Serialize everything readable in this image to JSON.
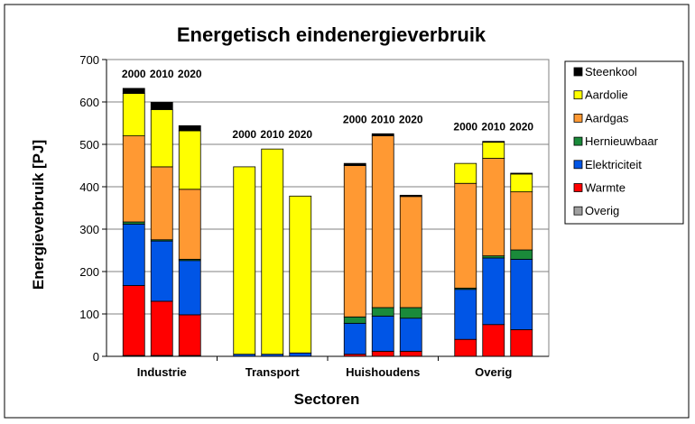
{
  "chart_data": {
    "type": "bar",
    "stacked": true,
    "title": "Energetisch eindenergieverbruik",
    "xlabel": "Sectoren",
    "ylabel": "Energieverbruik [PJ]",
    "ylim": [
      0,
      700
    ],
    "yticks": [
      0,
      100,
      200,
      300,
      400,
      500,
      600,
      700
    ],
    "categories": [
      "Industrie",
      "Transport",
      "Huishoudens",
      "Overig"
    ],
    "years": [
      "2000",
      "2010",
      "2020"
    ],
    "legend_position": "right",
    "series": [
      {
        "name": "Overig",
        "color": "#a0a0a0",
        "values": [
          [
            2,
            2,
            2
          ],
          [
            0,
            0,
            0
          ],
          [
            0,
            0,
            0
          ],
          [
            0,
            0,
            0
          ]
        ]
      },
      {
        "name": "Warmte",
        "color": "#ff0000",
        "values": [
          [
            165,
            128,
            96
          ],
          [
            0,
            0,
            0
          ],
          [
            5,
            12,
            12
          ],
          [
            40,
            75,
            63
          ]
        ]
      },
      {
        "name": "Elektriciteit",
        "color": "#0055e6",
        "values": [
          [
            145,
            142,
            128
          ],
          [
            5,
            5,
            8
          ],
          [
            73,
            83,
            78
          ],
          [
            118,
            157,
            166
          ]
        ]
      },
      {
        "name": "Hernieuwbaar",
        "color": "#1a8a3a",
        "values": [
          [
            5,
            3,
            3
          ],
          [
            0,
            0,
            0
          ],
          [
            15,
            20,
            25
          ],
          [
            3,
            5,
            22
          ]
        ]
      },
      {
        "name": "Aardgas",
        "color": "#ff9933",
        "values": [
          [
            203,
            172,
            165
          ],
          [
            0,
            0,
            0
          ],
          [
            357,
            405,
            262
          ],
          [
            247,
            230,
            137
          ]
        ]
      },
      {
        "name": "Aardolie",
        "color": "#ffff00",
        "values": [
          [
            100,
            135,
            138
          ],
          [
            442,
            484,
            370
          ],
          [
            0,
            0,
            0
          ],
          [
            47,
            38,
            42
          ]
        ]
      },
      {
        "name": "Steenkool",
        "color": "#000000",
        "values": [
          [
            12,
            17,
            12
          ],
          [
            0,
            0,
            0
          ],
          [
            5,
            5,
            3
          ],
          [
            0,
            2,
            2
          ]
        ]
      }
    ]
  }
}
